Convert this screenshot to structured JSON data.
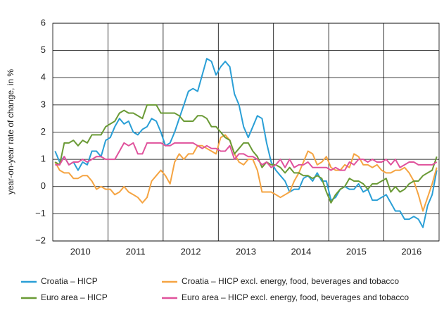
{
  "chart_data": {
    "type": "line",
    "y_label": "year-on-year rate of change, in %",
    "categories": [
      null,
      null,
      null,
      null,
      null,
      null,
      "2010",
      null,
      null,
      null,
      null,
      null,
      null,
      null,
      null,
      null,
      null,
      null,
      "2011",
      null,
      null,
      null,
      null,
      null,
      null,
      null,
      null,
      null,
      null,
      null,
      "2012",
      null,
      null,
      null,
      null,
      null,
      null,
      null,
      null,
      null,
      null,
      null,
      "2013",
      null,
      null,
      null,
      null,
      null,
      null,
      null,
      null,
      null,
      null,
      null,
      "2014",
      null,
      null,
      null,
      null,
      null,
      null,
      null,
      null,
      null,
      null,
      null,
      "2015",
      null,
      null,
      null,
      null,
      null,
      null,
      null,
      null,
      null,
      null,
      null,
      "2016",
      null,
      null,
      null,
      null,
      null
    ],
    "ylim": [
      -2,
      6
    ],
    "yticks": [
      {
        "value": -2,
        "label": "−2"
      },
      {
        "value": -1,
        "label": "−1"
      },
      0,
      1,
      2,
      3,
      4,
      5,
      6
    ],
    "grid": true,
    "legend": "bottom",
    "series": [
      {
        "name": "Croatia – HICP",
        "color": "#2a9fd6",
        "values": [
          1.3,
          0.9,
          1.1,
          0.8,
          0.9,
          0.6,
          0.9,
          0.8,
          1.3,
          1.3,
          1.1,
          1.7,
          1.8,
          2.2,
          2.5,
          2.3,
          2.4,
          2.0,
          1.9,
          2.1,
          2.2,
          2.5,
          2.4,
          2.0,
          1.5,
          1.6,
          2.0,
          2.5,
          3.0,
          3.5,
          3.6,
          3.5,
          4.1,
          4.7,
          4.6,
          4.1,
          4.4,
          4.6,
          4.4,
          3.4,
          3.0,
          2.2,
          1.8,
          2.2,
          2.6,
          2.5,
          1.6,
          0.9,
          0.6,
          0.4,
          0.2,
          -0.2,
          -0.1,
          -0.1,
          0.3,
          0.4,
          0.2,
          0.5,
          0.2,
          0.2,
          -0.5,
          -0.4,
          -0.1,
          0.0,
          -0.1,
          -0.1,
          0.1,
          -0.2,
          -0.1,
          -0.5,
          -0.5,
          -0.4,
          -0.3,
          -0.6,
          -0.9,
          -0.9,
          -1.2,
          -1.2,
          -1.1,
          -1.2,
          -1.5,
          -0.7,
          -0.3,
          0.6
        ]
      },
      {
        "name": "Croatia – HICP excl. energy, food, beverages and tobacco",
        "color": "#f5a442",
        "values": [
          0.9,
          0.6,
          0.5,
          0.5,
          0.3,
          0.3,
          0.4,
          0.4,
          0.2,
          -0.1,
          0.0,
          -0.1,
          -0.1,
          -0.3,
          -0.2,
          0.0,
          -0.2,
          -0.3,
          -0.4,
          -0.6,
          -0.4,
          0.2,
          0.4,
          0.6,
          0.4,
          0.1,
          0.9,
          1.2,
          1.0,
          1.2,
          1.2,
          1.5,
          1.5,
          1.4,
          1.3,
          1.2,
          1.8,
          1.9,
          1.7,
          1.2,
          0.9,
          0.8,
          1.0,
          1.0,
          0.6,
          -0.2,
          -0.2,
          -0.2,
          -0.3,
          -0.4,
          -0.3,
          -0.2,
          0.2,
          0.5,
          0.9,
          1.3,
          1.2,
          0.8,
          0.9,
          1.1,
          0.7,
          0.6,
          0.6,
          0.8,
          0.7,
          1.2,
          1.1,
          0.8,
          0.8,
          0.7,
          0.8,
          0.6,
          0.5,
          0.5,
          0.6,
          0.6,
          0.7,
          0.5,
          0.2,
          -0.3,
          -0.9,
          -0.4,
          0.1,
          0.7
        ]
      },
      {
        "name": "Euro area – HICP",
        "color": "#6a9a35",
        "values": [
          0.9,
          0.8,
          1.6,
          1.6,
          1.7,
          1.5,
          1.7,
          1.6,
          1.9,
          1.9,
          1.9,
          2.2,
          2.3,
          2.4,
          2.7,
          2.8,
          2.7,
          2.7,
          2.6,
          2.5,
          3.0,
          3.0,
          3.0,
          2.7,
          2.7,
          2.7,
          2.7,
          2.6,
          2.4,
          2.4,
          2.4,
          2.6,
          2.6,
          2.5,
          2.2,
          2.2,
          2.0,
          1.8,
          1.7,
          1.2,
          1.4,
          1.6,
          1.6,
          1.3,
          1.1,
          0.7,
          0.9,
          0.8,
          0.8,
          0.7,
          0.5,
          0.7,
          0.5,
          0.5,
          0.4,
          0.4,
          0.3,
          0.4,
          0.3,
          -0.2,
          -0.6,
          -0.3,
          -0.1,
          0.0,
          0.3,
          0.2,
          0.2,
          0.1,
          -0.1,
          0.1,
          0.1,
          0.2,
          0.3,
          -0.2,
          0.0,
          -0.2,
          -0.1,
          0.1,
          0.2,
          0.2,
          0.4,
          0.5,
          0.6,
          1.1
        ]
      },
      {
        "name": "Euro area – HICP excl. energy, food, beverages and tobacco",
        "color": "#e0529c",
        "values": [
          0.8,
          0.8,
          1.1,
          0.8,
          0.9,
          0.9,
          1.0,
          0.9,
          1.0,
          1.1,
          1.1,
          1.0,
          1.0,
          1.0,
          1.3,
          1.6,
          1.5,
          1.6,
          1.2,
          1.2,
          1.6,
          1.6,
          1.6,
          1.6,
          1.5,
          1.5,
          1.6,
          1.6,
          1.6,
          1.6,
          1.6,
          1.5,
          1.4,
          1.5,
          1.4,
          1.4,
          1.3,
          1.3,
          1.5,
          1.0,
          1.2,
          1.2,
          1.1,
          1.1,
          1.0,
          0.8,
          0.9,
          0.7,
          0.8,
          1.0,
          0.7,
          1.0,
          0.7,
          0.8,
          0.8,
          0.9,
          0.7,
          0.7,
          0.7,
          0.7,
          0.6,
          0.7,
          0.6,
          0.6,
          0.9,
          0.8,
          1.0,
          1.0,
          0.9,
          1.0,
          0.9,
          0.9,
          1.0,
          0.8,
          1.0,
          0.7,
          0.8,
          0.9,
          0.9,
          0.8,
          0.8,
          0.8,
          0.8,
          0.9
        ]
      }
    ]
  }
}
